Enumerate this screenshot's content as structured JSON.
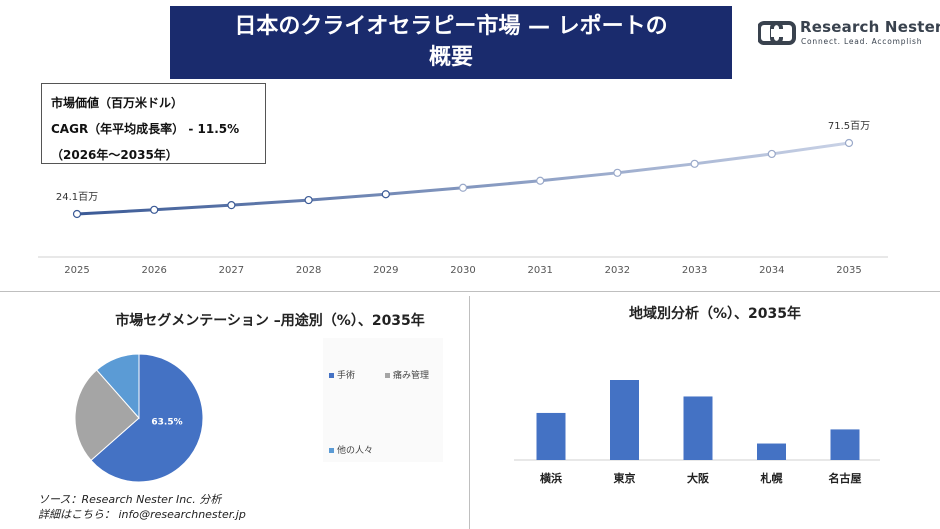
{
  "header": {
    "title_line1": "日本のクライオセラピー市場 — レポートの",
    "title_line2": "概要"
  },
  "logo": {
    "name": "Research Nester",
    "tagline": "Connect. Lead. Accomplish",
    "icon": "research-nester-logo-icon"
  },
  "info_box": {
    "line1": "市場価値（百万米ドル）",
    "line2": "CAGR（年平均成長率） - 11.5%",
    "line3": "（2026年～2035年）"
  },
  "chart_data": [
    {
      "type": "line",
      "x": [
        "2025",
        "2026",
        "2027",
        "2028",
        "2029",
        "2030",
        "2031",
        "2032",
        "2033",
        "2034",
        "2035"
      ],
      "values": [
        24.1,
        26.9,
        30.0,
        33.4,
        37.3,
        41.6,
        46.3,
        51.6,
        57.6,
        64.2,
        71.5
      ],
      "annotations": [
        {
          "x": "2025",
          "label": "24.1百万"
        },
        {
          "x": "2035",
          "label": "71.5百万"
        }
      ],
      "colors": {
        "start": "#3b5a96",
        "end": "#c9d2e6"
      },
      "grid": false
    },
    {
      "type": "pie",
      "title": "市場セグメンテーション –用途別（%）、2035年",
      "labels": [
        "手術",
        "痛み管理",
        "他の人々"
      ],
      "values": [
        63.5,
        25.0,
        11.5
      ],
      "colors": [
        "#4472c4",
        "#a5a5a5",
        "#5b9bd5"
      ],
      "data_labels": [
        "63.5%",
        "",
        ""
      ]
    },
    {
      "type": "bar",
      "title": "地域別分析（%）、2035年",
      "categories": [
        "横浜",
        "東京",
        "大阪",
        "札幌",
        "名古屋"
      ],
      "values": [
        20,
        34,
        27,
        7,
        13
      ],
      "color": "#4472c4"
    }
  ],
  "footer": {
    "source_line1": "ソース：Research Nester Inc. 分析",
    "source_line2": "詳細はこちら： info@researchnester.jp"
  }
}
